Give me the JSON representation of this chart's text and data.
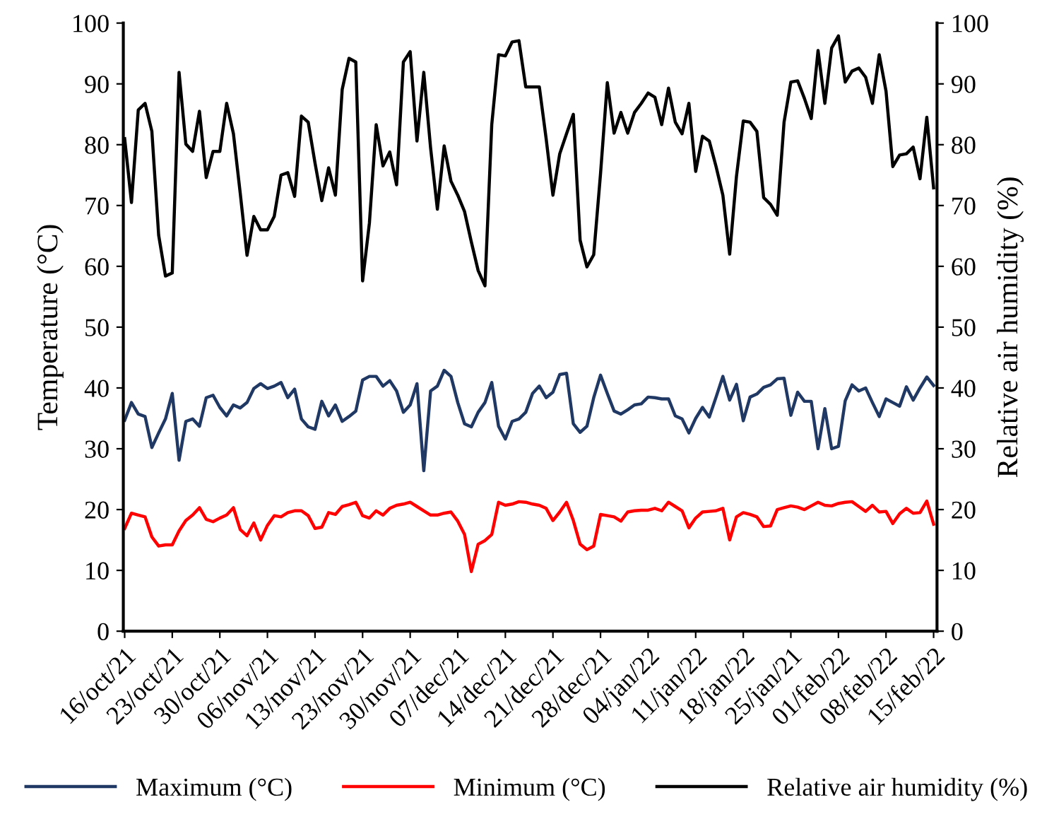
{
  "chart_data": {
    "type": "line",
    "ylabel": "Temperature (°C)",
    "y2label": "Relative air humidity (%)",
    "categories": [
      "16/oct/21",
      null,
      null,
      null,
      null,
      null,
      null,
      "23/oct/21",
      null,
      null,
      null,
      null,
      null,
      null,
      "30/oct/21",
      null,
      null,
      null,
      null,
      null,
      null,
      "06/nov/21",
      null,
      null,
      null,
      null,
      null,
      null,
      "13/nov/21",
      null,
      null,
      null,
      null,
      null,
      null,
      "23/nov/21",
      null,
      null,
      null,
      null,
      null,
      null,
      "30/nov/21",
      null,
      null,
      null,
      null,
      null,
      null,
      "07/dec/21",
      null,
      null,
      null,
      null,
      null,
      null,
      "14/dec/21",
      null,
      null,
      null,
      null,
      null,
      null,
      "21/dec/21",
      null,
      null,
      null,
      null,
      null,
      null,
      "28/dec/21",
      null,
      null,
      null,
      null,
      null,
      null,
      "04/jan/22",
      null,
      null,
      null,
      null,
      null,
      null,
      "11/jan/22",
      null,
      null,
      null,
      null,
      null,
      null,
      "18/jan/22",
      null,
      null,
      null,
      null,
      null,
      null,
      "25/jan/21",
      null,
      null,
      null,
      null,
      null,
      null,
      "01/feb/22",
      null,
      null,
      null,
      null,
      null,
      null,
      "08/feb/22",
      null,
      null,
      null,
      null,
      null,
      null,
      "15/feb/22"
    ],
    "ylim": [
      0,
      100
    ],
    "yticks": [
      0,
      10,
      20,
      30,
      40,
      50,
      60,
      70,
      80,
      90,
      100
    ],
    "y2lim": [
      0,
      100
    ],
    "y2ticks": [
      0,
      10,
      20,
      30,
      40,
      50,
      60,
      70,
      80,
      90,
      100
    ],
    "grid": false,
    "legend": "bottom",
    "marker": "none",
    "line_style": "solid",
    "series": [
      {
        "name": "Maximum (°C)",
        "color": "#203864",
        "values": [
          34.7,
          37.6,
          35.7,
          35.3,
          30.2,
          32.6,
          34.9,
          39.1,
          28.1,
          34.5,
          34.9,
          33.7,
          38.4,
          38.8,
          36.8,
          35.4,
          37.2,
          36.7,
          37.6,
          39.9,
          40.7,
          39.9,
          40.3,
          40.9,
          38.4,
          39.8,
          34.9,
          33.6,
          33.2,
          37.8,
          35.4,
          37.2,
          34.5,
          35.3,
          36.2,
          41.3,
          41.9,
          41.9,
          40.3,
          41.2,
          39.5,
          36.0,
          37.2,
          40.7,
          26.4,
          39.5,
          40.3,
          42.9,
          41.9,
          37.6,
          34.1,
          33.6,
          36.0,
          37.6,
          40.9,
          33.7,
          31.6,
          34.5,
          34.9,
          36.0,
          39.1,
          40.3,
          38.4,
          39.3,
          42.2,
          42.4,
          34.1,
          32.7,
          33.7,
          38.4,
          42.1,
          39.1,
          36.2,
          35.7,
          36.4,
          37.2,
          37.4,
          38.5,
          38.4,
          38.2,
          38.2,
          35.4,
          34.9,
          32.6,
          35.0,
          36.8,
          35.2,
          38.5,
          41.9,
          38.0,
          40.6,
          34.6,
          38.5,
          39.0,
          40.1,
          40.5,
          41.5,
          41.6,
          35.5,
          39.3,
          37.8,
          37.8,
          30.0,
          36.6,
          30.0,
          30.4,
          37.9,
          40.5,
          39.5,
          40.0,
          37.6,
          35.3,
          38.2,
          37.6,
          37.0,
          40.2,
          38.0,
          40.0,
          41.8,
          40.4
        ]
      },
      {
        "name": "Minimum (°C)",
        "color": "#ff0000",
        "values": [
          16.9,
          19.4,
          19.1,
          18.8,
          15.5,
          14.0,
          14.2,
          14.2,
          16.5,
          18.2,
          19.1,
          20.3,
          18.4,
          18.0,
          18.6,
          19.1,
          20.3,
          16.7,
          15.7,
          17.8,
          15.0,
          17.4,
          19.0,
          18.8,
          19.5,
          19.8,
          19.8,
          19.0,
          16.9,
          17.1,
          19.5,
          19.2,
          20.5,
          20.8,
          21.2,
          19.0,
          18.6,
          19.8,
          19.1,
          20.2,
          20.7,
          20.9,
          21.2,
          20.5,
          19.8,
          19.1,
          19.1,
          19.4,
          19.6,
          18.1,
          15.9,
          9.8,
          14.3,
          14.9,
          15.9,
          21.2,
          20.7,
          20.9,
          21.3,
          21.2,
          20.9,
          20.7,
          20.2,
          18.2,
          19.6,
          21.2,
          18.2,
          14.3,
          13.4,
          14.0,
          19.2,
          19.0,
          18.8,
          18.1,
          19.6,
          19.8,
          19.9,
          19.9,
          20.2,
          19.8,
          21.2,
          20.5,
          19.8,
          17.0,
          18.6,
          19.6,
          19.7,
          19.8,
          20.2,
          15.0,
          18.8,
          19.5,
          19.2,
          18.8,
          17.2,
          17.3,
          20.0,
          20.3,
          20.6,
          20.4,
          20.0,
          20.6,
          21.2,
          20.7,
          20.6,
          21.0,
          21.2,
          21.3,
          20.5,
          19.7,
          20.7,
          19.6,
          19.7,
          17.7,
          19.3,
          20.2,
          19.4,
          19.5,
          21.4,
          17.6
        ]
      },
      {
        "name": "Relative air humidity (%)",
        "color": "#000000",
        "axis": "y2",
        "values": [
          81.0,
          70.5,
          85.7,
          86.8,
          82.2,
          65.1,
          58.4,
          58.9,
          91.9,
          80.1,
          78.9,
          85.5,
          74.6,
          78.9,
          78.9,
          86.8,
          81.8,
          72.0,
          61.8,
          68.2,
          66.0,
          66.0,
          68.2,
          75.0,
          75.4,
          71.5,
          84.7,
          83.7,
          77.0,
          70.8,
          76.2,
          71.7,
          89.1,
          94.2,
          93.6,
          57.6,
          67.1,
          83.3,
          76.5,
          78.8,
          73.4,
          93.6,
          95.3,
          80.6,
          91.9,
          79.5,
          69.4,
          79.8,
          74.0,
          71.7,
          69.0,
          64.0,
          59.3,
          56.8,
          83.3,
          94.8,
          94.6,
          96.9,
          97.1,
          89.5,
          89.5,
          89.5,
          81.0,
          71.7,
          78.5,
          81.8,
          85.0,
          64.3,
          59.9,
          61.9,
          75.2,
          90.2,
          81.9,
          85.3,
          81.9,
          85.3,
          86.8,
          88.5,
          87.8,
          83.3,
          89.3,
          83.7,
          81.8,
          86.8,
          75.6,
          81.4,
          80.6,
          76.4,
          71.7,
          62.0,
          74.8,
          83.9,
          83.7,
          82.2,
          71.3,
          70.2,
          68.4,
          83.7,
          90.3,
          90.5,
          87.6,
          84.3,
          95.5,
          86.8,
          95.9,
          97.9,
          90.3,
          92.1,
          92.6,
          91.1,
          86.8,
          94.8,
          88.8,
          76.4,
          78.3,
          78.5,
          79.6,
          74.4,
          84.5,
          72.9
        ]
      }
    ]
  }
}
